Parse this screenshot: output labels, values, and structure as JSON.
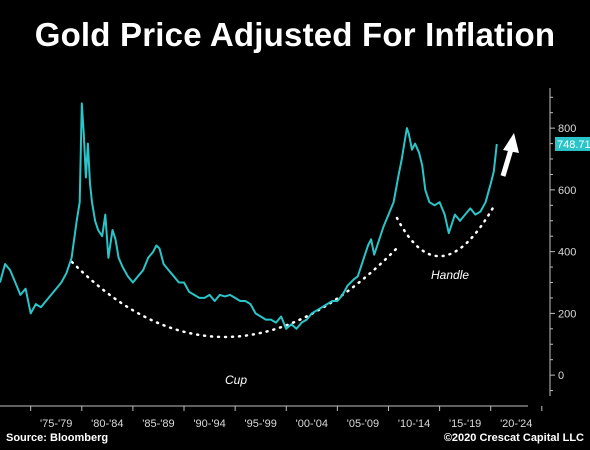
{
  "chart_data": {
    "type": "line",
    "title": "Gold Price Adjusted For Inflation",
    "xlabel": "",
    "ylabel": "",
    "ylim": [
      -100,
      930
    ],
    "xlim": [
      1972.0,
      2025.8
    ],
    "y_ticks": [
      0,
      200,
      400,
      600,
      800
    ],
    "x_tick_labels": [
      "'75-'79",
      "'80-'84",
      "'85-'89",
      "'90-'94",
      "'95-'99",
      "'00-'04",
      "'05-'09",
      "'10-'14",
      "'15-'19",
      "'20-'24"
    ],
    "last_value_label": "748.71",
    "grid": false,
    "legend": "none",
    "series": [
      {
        "color": "#29c5c9",
        "x": [
          1972.0,
          1972.5,
          1973.0,
          1973.5,
          1974.0,
          1974.5,
          1975.0,
          1975.5,
          1976.0,
          1976.5,
          1977.0,
          1977.5,
          1978.0,
          1978.5,
          1979.0,
          1979.5,
          1979.8,
          1980.0,
          1980.2,
          1980.4,
          1980.6,
          1980.8,
          1981.0,
          1981.3,
          1981.6,
          1982.0,
          1982.3,
          1982.6,
          1983.0,
          1983.3,
          1983.6,
          1984.0,
          1984.5,
          1985.0,
          1985.5,
          1986.0,
          1986.5,
          1987.0,
          1987.3,
          1987.6,
          1988.0,
          1988.5,
          1989.0,
          1989.5,
          1990.0,
          1990.5,
          1991.0,
          1991.5,
          1992.0,
          1992.5,
          1993.0,
          1993.5,
          1994.0,
          1994.5,
          1995.0,
          1995.5,
          1996.0,
          1996.5,
          1997.0,
          1997.5,
          1998.0,
          1998.5,
          1999.0,
          1999.5,
          2000.0,
          2000.5,
          2001.0,
          2001.5,
          2002.0,
          2002.5,
          2003.0,
          2003.5,
          2004.0,
          2004.5,
          2005.0,
          2005.5,
          2006.0,
          2006.3,
          2006.6,
          2007.0,
          2007.5,
          2008.0,
          2008.3,
          2008.6,
          2009.0,
          2009.5,
          2010.0,
          2010.5,
          2011.0,
          2011.3,
          2011.6,
          2011.8,
          2012.0,
          2012.3,
          2012.6,
          2013.0,
          2013.3,
          2013.6,
          2014.0,
          2014.5,
          2015.0,
          2015.5,
          2015.9,
          2016.2,
          2016.5,
          2017.0,
          2017.5,
          2018.0,
          2018.5,
          2019.0,
          2019.5,
          2020.0,
          2020.3,
          2020.6
        ],
        "values": [
          300,
          360,
          340,
          300,
          260,
          280,
          200,
          230,
          220,
          240,
          260,
          280,
          300,
          330,
          380,
          500,
          560,
          880,
          780,
          640,
          750,
          620,
          560,
          500,
          470,
          450,
          520,
          380,
          470,
          440,
          380,
          350,
          320,
          300,
          320,
          340,
          380,
          400,
          420,
          410,
          360,
          340,
          320,
          300,
          300,
          270,
          260,
          250,
          250,
          260,
          240,
          260,
          255,
          260,
          250,
          240,
          240,
          230,
          200,
          190,
          180,
          180,
          170,
          190,
          150,
          165,
          150,
          170,
          180,
          200,
          210,
          220,
          230,
          240,
          240,
          260,
          290,
          300,
          310,
          320,
          370,
          420,
          440,
          390,
          430,
          480,
          520,
          560,
          650,
          700,
          760,
          800,
          780,
          730,
          750,
          720,
          680,
          600,
          560,
          550,
          560,
          520,
          460,
          490,
          520,
          500,
          520,
          540,
          520,
          530,
          560,
          620,
          660,
          748.71
        ]
      }
    ],
    "annotations": [
      "Cup",
      "Handle"
    ],
    "current_value_box": "#29c5c9"
  },
  "footer": {
    "source": "Source: Bloomberg",
    "credit": "©2020 Crescat Capital LLC"
  }
}
